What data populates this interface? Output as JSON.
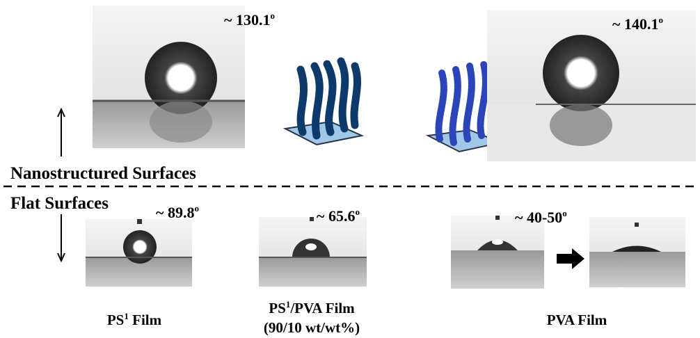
{
  "top_left_angle": {
    "text": "~ 130.1",
    "sup": "o"
  },
  "top_right_angle": {
    "text": "~ 140.1",
    "sup": "o"
  },
  "section_nano": "Nanostructured Surfaces",
  "section_flat": "Flat Surfaces",
  "ps_angle": {
    "text": "~ 89.8",
    "sup": "o"
  },
  "ps_pva_angle": {
    "text": "~ 65.6",
    "sup": "o"
  },
  "pva_angle": {
    "text": "~ 40-50",
    "sup": "o"
  },
  "ps_label": {
    "base": "PS",
    "sup": "1",
    "rest": " Film"
  },
  "ps_pva_label": {
    "base": "PS",
    "sup": "1",
    "rest": "/PVA Film",
    "line2": "(90/10 wt/wt%)"
  },
  "pva_label": "PVA Film"
}
